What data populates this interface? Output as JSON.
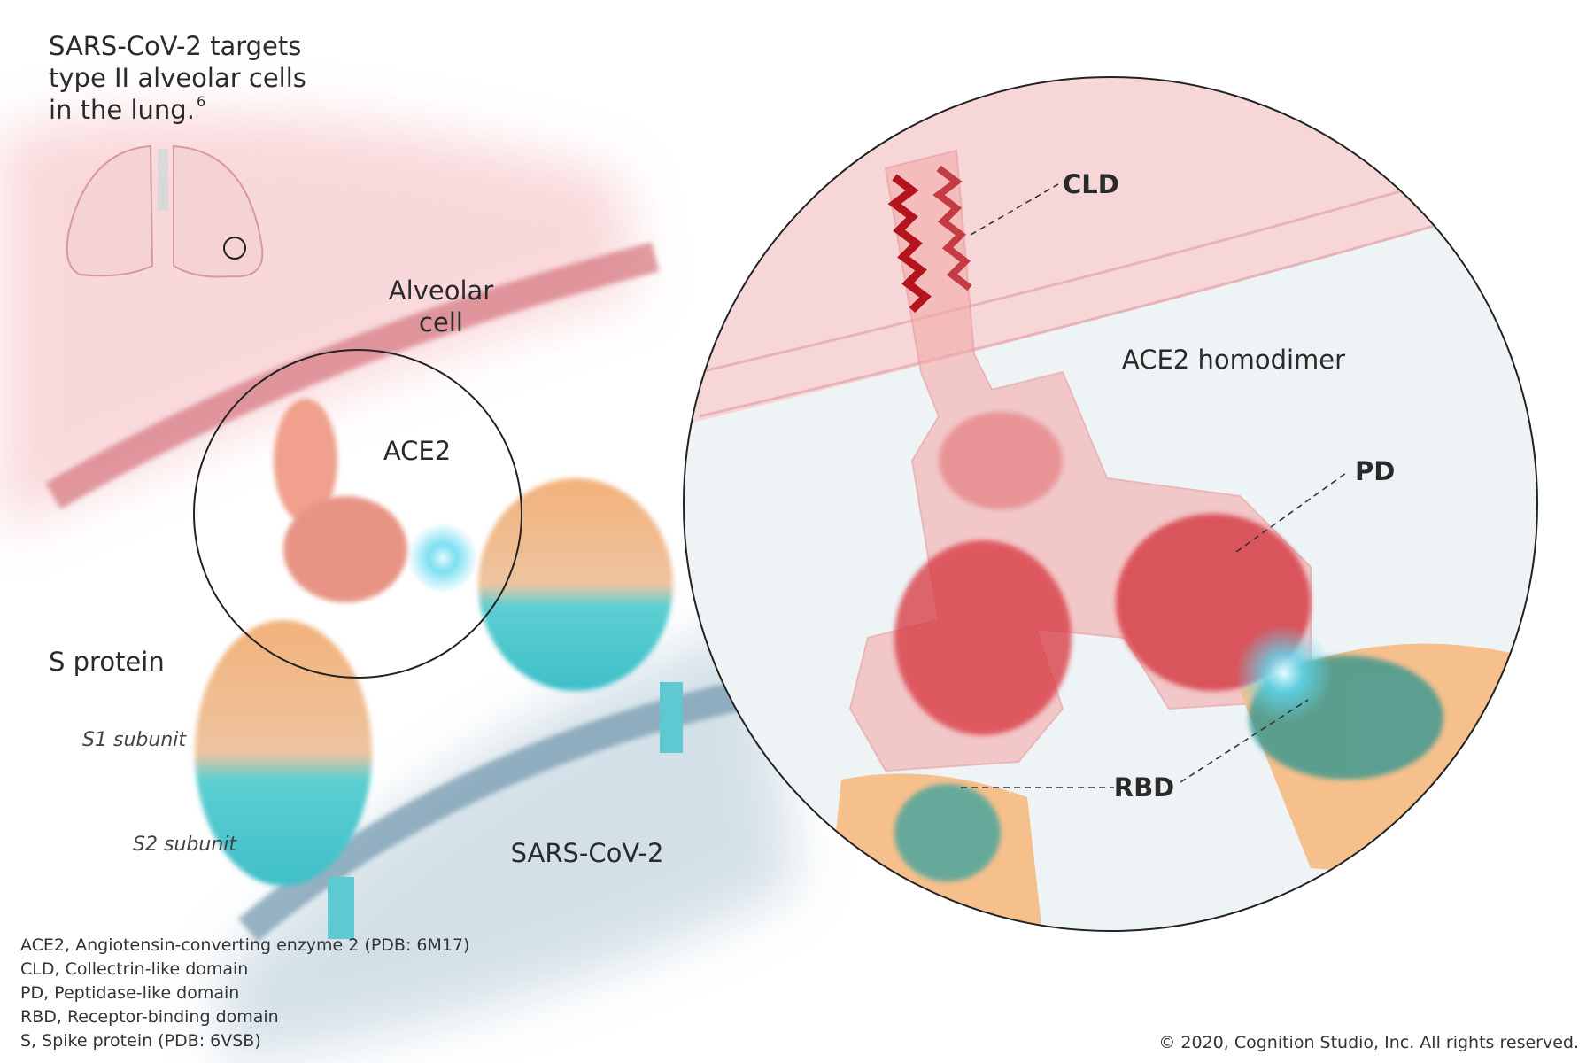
{
  "title": {
    "lines": [
      "SARS-CoV-2 targets",
      "type II alveolar cells",
      "in the lung."
    ],
    "reference": "6"
  },
  "labels": {
    "alveolar_cell": [
      "Alveolar",
      "cell"
    ],
    "ace2": "ACE2",
    "s_protein": "S protein",
    "s1_subunit": "S1 subunit",
    "s2_subunit": "S2 subunit",
    "virus": "SARS-CoV-2"
  },
  "inset_labels": {
    "cld": "CLD",
    "homodimer": "ACE2 homodimer",
    "pd": "PD",
    "rbd": "RBD"
  },
  "glossary": [
    "ACE2, Angiotensin-converting enzyme 2 (PDB: 6M17)",
    "CLD, Collectrin-like domain",
    "PD, Peptidase-like domain",
    "RBD, Receptor-binding domain",
    "S, Spike protein (PDB: 6VSB)"
  ],
  "copyright": "© 2020, Cognition Studio, Inc. All rights reserved."
}
